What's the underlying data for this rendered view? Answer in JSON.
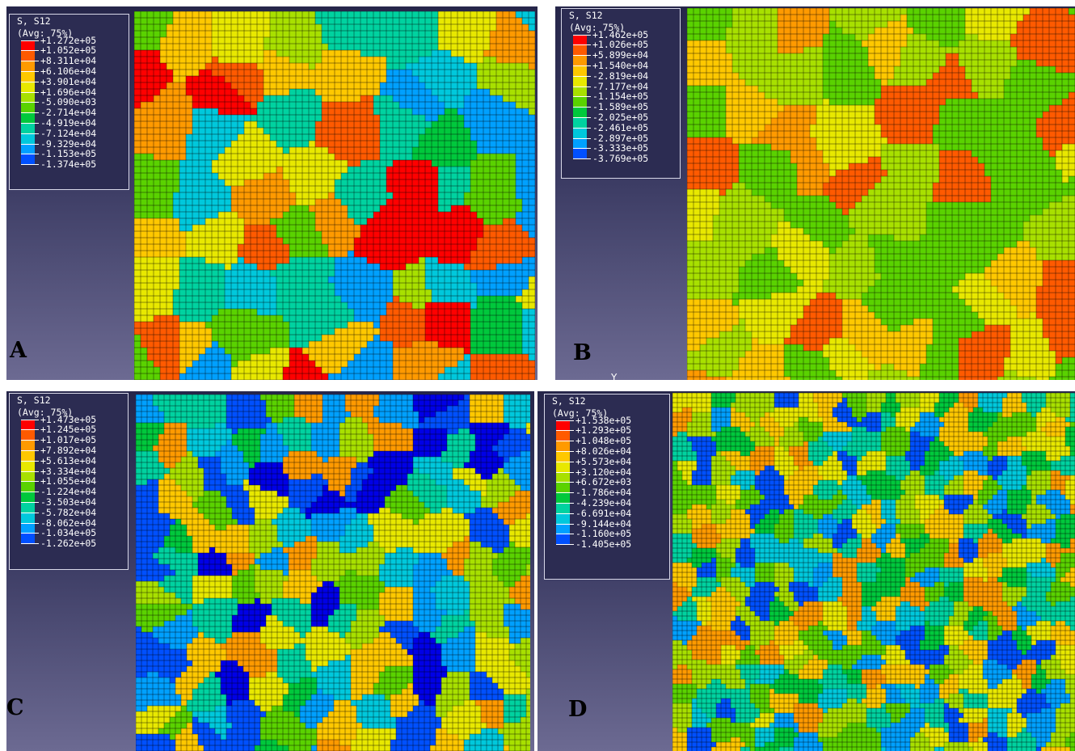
{
  "panels": [
    {
      "id": "A",
      "label": "A",
      "legend": {
        "title": "S, S12",
        "subtitle": "(Avg: 75%)",
        "values": [
          "+1.272e+05",
          "+1.052e+05",
          "+8.311e+04",
          "+6.106e+04",
          "+3.901e+04",
          "+1.696e+04",
          "-5.090e+03",
          "-2.714e+04",
          "-4.919e+04",
          "-7.124e+04",
          "-9.329e+04",
          "-1.153e+05",
          "-1.374e+05"
        ]
      }
    },
    {
      "id": "B",
      "label": "B",
      "legend": {
        "title": "S, S12",
        "subtitle": "(Avg: 75%)",
        "values": [
          "+1.462e+05",
          "+1.026e+05",
          "+5.899e+04",
          "+1.540e+04",
          "-2.819e+04",
          "-7.177e+04",
          "-1.154e+05",
          "-1.589e+05",
          "-2.025e+05",
          "-2.461e+05",
          "-2.897e+05",
          "-3.333e+05",
          "-3.769e+05"
        ]
      },
      "axis_label": "Y"
    },
    {
      "id": "C",
      "label": "C",
      "legend": {
        "title": "S, S12",
        "subtitle": "(Avg: 75%)",
        "values": [
          "+1.473e+05",
          "+1.245e+05",
          "+1.017e+05",
          "+7.892e+04",
          "+5.613e+04",
          "+3.334e+04",
          "+1.055e+04",
          "-1.224e+04",
          "-3.503e+04",
          "-5.782e+04",
          "-8.062e+04",
          "-1.034e+05",
          "-1.262e+05"
        ]
      }
    },
    {
      "id": "D",
      "label": "D",
      "legend": {
        "title": "S, S12",
        "subtitle": "(Avg: 75%)",
        "values": [
          "+1.538e+05",
          "+1.293e+05",
          "+1.048e+05",
          "+8.026e+04",
          "+5.573e+04",
          "+3.120e+04",
          "+6.672e+03",
          "-1.786e+04",
          "-4.239e+04",
          "-6.691e+04",
          "-9.144e+04",
          "-1.160e+05",
          "-1.405e+05"
        ]
      }
    }
  ],
  "colormap": [
    "#ff0000",
    "#ff5a00",
    "#ff9a00",
    "#ffc800",
    "#e8e800",
    "#a8e000",
    "#5ad200",
    "#00c83c",
    "#00d2a0",
    "#00c8dc",
    "#00a0ff",
    "#0050ff",
    "#0000e6"
  ]
}
